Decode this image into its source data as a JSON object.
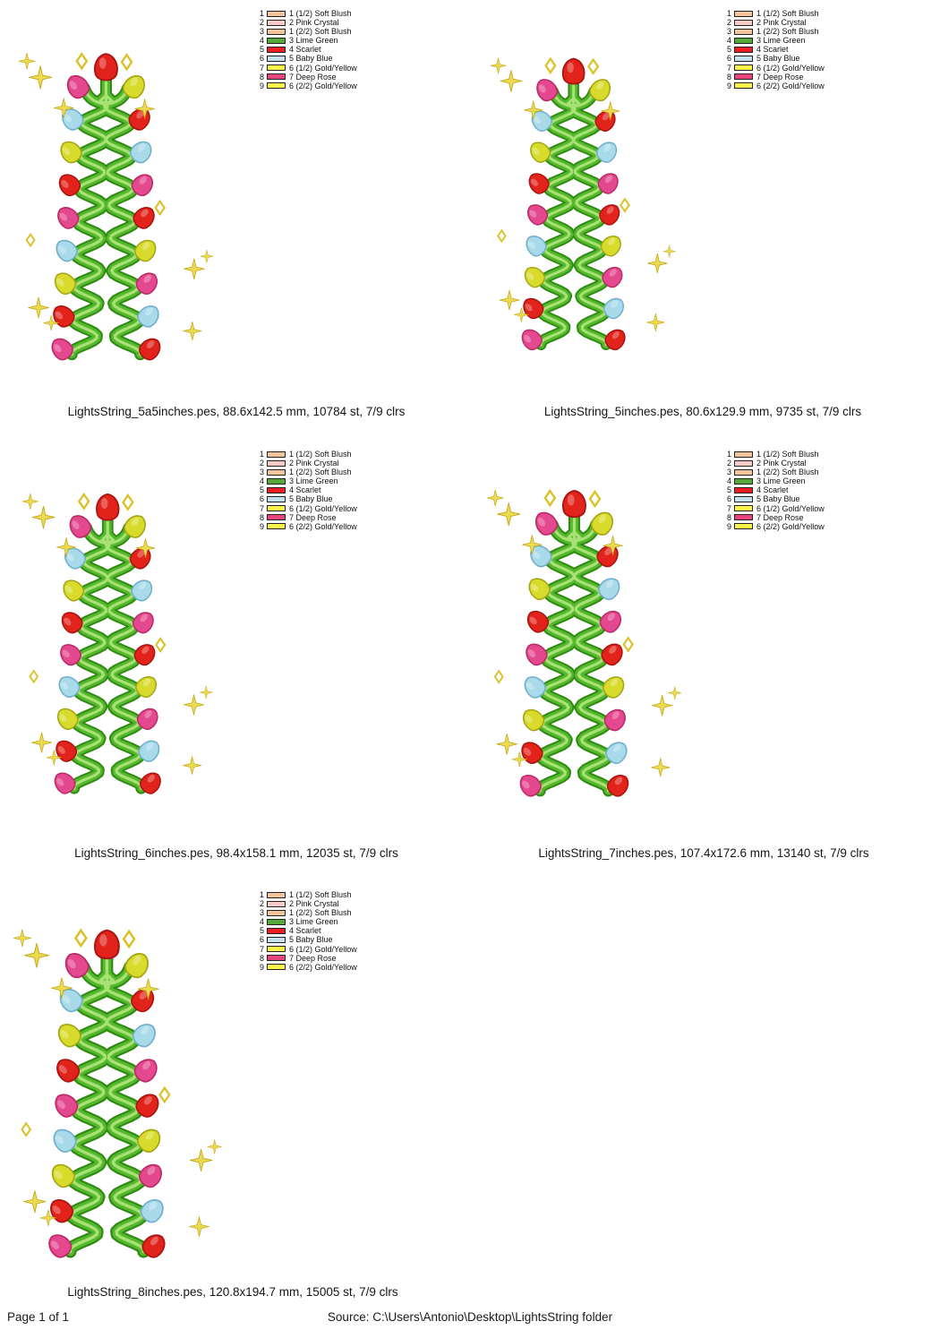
{
  "page": {
    "footer_left": "Page 1 of 1",
    "footer_source": "Source: C:\\Users\\Antonio\\Desktop\\LightsString folder"
  },
  "legend": {
    "entries": [
      {
        "num": "1",
        "color": "#F2C49B",
        "label": "1 (1/2) Soft Blush"
      },
      {
        "num": "2",
        "color": "#F7CBC8",
        "label": "2 Pink Crystal"
      },
      {
        "num": "3",
        "color": "#F2C49B",
        "label": "1 (2/2) Soft Blush"
      },
      {
        "num": "4",
        "color": "#56A839",
        "label": "3 Lime Green"
      },
      {
        "num": "5",
        "color": "#EE1C25",
        "label": "4 Scarlet"
      },
      {
        "num": "6",
        "color": "#C6E2EF",
        "label": "5 Baby Blue"
      },
      {
        "num": "7",
        "color": "#FDF54A",
        "label": "6 (1/2) Gold/Yellow"
      },
      {
        "num": "8",
        "color": "#E8447E",
        "label": "7 Deep Rose"
      },
      {
        "num": "9",
        "color": "#FDF54A",
        "label": "6 (2/2) Gold/Yellow"
      }
    ]
  },
  "designs": [
    {
      "caption": "LightsString_5a5inches.pes, 88.6x142.5 mm, 10784 st, 7/9 clrs"
    },
    {
      "caption": "LightsString_5inches.pes, 80.6x129.9 mm, 9735 st, 7/9 clrs"
    },
    {
      "caption": "LightsString_6inches.pes, 98.4x158.1 mm, 12035 st, 7/9 clrs"
    },
    {
      "caption": "LightsString_7inches.pes, 107.4x172.6 mm, 13140 st, 7/9 clrs"
    },
    {
      "caption": "LightsString_8inches.pes, 120.8x194.7 mm, 15005 st, 7/9 clrs"
    }
  ],
  "artwork": {
    "apex_bulb": "scarlet",
    "branch_bulbs": [
      "deep-rose",
      "gold-yellow"
    ],
    "left_strand_bulbs": [
      "baby-blue",
      "gold-yellow",
      "scarlet",
      "deep-rose",
      "baby-blue",
      "gold-yellow",
      "scarlet",
      "deep-rose"
    ],
    "right_strand_bulbs": [
      "scarlet",
      "baby-blue",
      "deep-rose",
      "scarlet",
      "gold-yellow",
      "deep-rose",
      "baby-blue",
      "scarlet"
    ],
    "bulb_colors": {
      "deep-rose": {
        "fill": "#E4488E",
        "edge": "#B92A66"
      },
      "scarlet": {
        "fill": "#E2231C",
        "edge": "#A81410"
      },
      "baby-blue": {
        "fill": "#A8DAEA",
        "edge": "#6FAECB"
      },
      "gold-yellow": {
        "fill": "#D8DB2B",
        "edge": "#A3A513"
      }
    },
    "strand": {
      "main": "#55B82E",
      "dark": "#2F8A12",
      "light": "#A9E274"
    },
    "sparkle": {
      "fill": "#EBDB52",
      "edge": "#C2A410"
    },
    "diamond_stroke": "#D9C22A"
  }
}
